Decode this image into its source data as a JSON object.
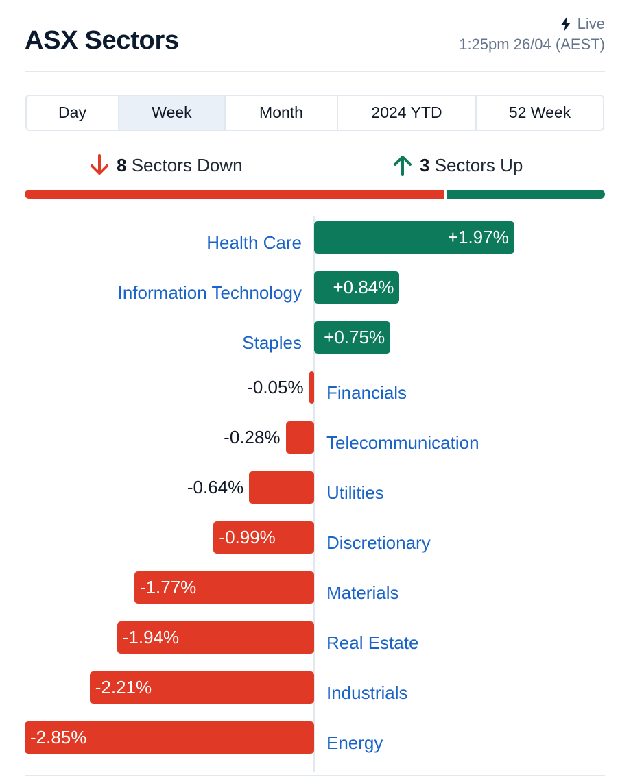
{
  "header": {
    "title": "ASX Sectors",
    "live_label": "Live",
    "timestamp": "1:25pm 26/04 (AEST)"
  },
  "tabs": [
    {
      "label": "Day",
      "active": false
    },
    {
      "label": "Week",
      "active": true
    },
    {
      "label": "Month",
      "active": false
    },
    {
      "label": "2024 YTD",
      "active": false
    },
    {
      "label": "52 Week",
      "active": false
    }
  ],
  "summary": {
    "down_count": "8",
    "down_text": "Sectors Down",
    "up_count": "3",
    "up_text": "Sectors Up"
  },
  "colors": {
    "positive": "#0d7b5b",
    "negative": "#e03a26",
    "link": "#1a64c8"
  },
  "chart_data": {
    "type": "bar",
    "orientation": "horizontal-diverging",
    "title": "",
    "xlabel": "",
    "ylabel": "",
    "unit": "%",
    "xlim": [
      -2.85,
      1.97
    ],
    "categories": [
      "Health Care",
      "Information Technology",
      "Staples",
      "Financials",
      "Telecommunication",
      "Utilities",
      "Discretionary",
      "Materials",
      "Real Estate",
      "Industrials",
      "Energy"
    ],
    "values": [
      1.97,
      0.84,
      0.75,
      -0.05,
      -0.28,
      -0.64,
      -0.99,
      -1.77,
      -1.94,
      -2.21,
      -2.85
    ],
    "value_labels": [
      "+1.97%",
      "+0.84%",
      "+0.75%",
      "-0.05%",
      "-0.28%",
      "-0.64%",
      "-0.99%",
      "-1.77%",
      "-1.94%",
      "-2.21%",
      "-2.85%"
    ]
  }
}
